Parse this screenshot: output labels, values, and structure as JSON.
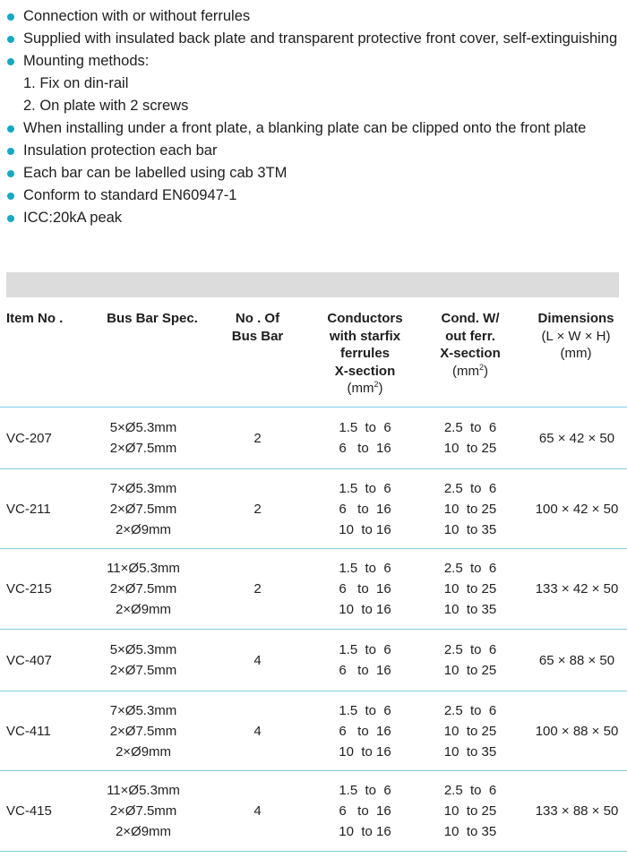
{
  "features": [
    {
      "text": "Connection with or without ferrules",
      "bullet": true
    },
    {
      "text": "Supplied with insulated back plate and transparent protective front cover, self-extinguishing",
      "bullet": true
    },
    {
      "text": "Mounting methods:",
      "bullet": true
    },
    {
      "text": "1. Fix on din-rail",
      "bullet": false
    },
    {
      "text": "2. On plate with 2 screws",
      "bullet": false
    },
    {
      "text": "When installing under a front plate, a blanking plate can be clipped onto the front plate",
      "bullet": true
    },
    {
      "text": "Insulation protection each bar",
      "bullet": true
    },
    {
      "text": "Each bar can be labelled using cab 3TM",
      "bullet": true
    },
    {
      "text": "Conform to standard EN60947-1",
      "bullet": true
    },
    {
      "text": "ICC:20kA peak",
      "bullet": true
    }
  ],
  "colors": {
    "accent": "#1aa7c3",
    "band": "#dcdcdc",
    "divider": "#7fcfe0"
  },
  "table": {
    "headers": {
      "item": "Item No .",
      "spec": "Bus Bar Spec.",
      "nbar_1": "No . Of",
      "nbar_2": "Bus Bar",
      "cond1_1": "Conductors",
      "cond1_2": "with starfix",
      "cond1_3": "ferrules",
      "cond1_4": "X-section",
      "cond1_unit": "(mm",
      "cond1_sup": "2",
      "cond1_close": ")",
      "cond2_1": "Cond. W/",
      "cond2_2": "out ferr.",
      "cond2_3": "X-section",
      "cond2_unit": "(mm",
      "cond2_sup": "2",
      "cond2_close": ")",
      "dim_1": "Dimensions",
      "dim_2": "(L × W × H)",
      "dim_3": "(mm)"
    },
    "rows": [
      {
        "item": "VC-207",
        "spec": "5×Ø5.3mm\n2×Ø7.5mm",
        "nbar": "2",
        "cond1": "1.5  to  6\n6   to  16",
        "cond2": "2.5  to  6\n10  to 25",
        "dim": "65 × 42 × 50"
      },
      {
        "item": "VC-211",
        "spec": "7×Ø5.3mm\n2×Ø7.5mm\n2×Ø9mm",
        "nbar": "2",
        "cond1": "1.5  to  6\n6   to  16\n10  to 16",
        "cond2": "2.5  to  6\n10  to 25\n10  to 35",
        "dim": "100 × 42 × 50"
      },
      {
        "item": "VC-215",
        "spec": "11×Ø5.3mm\n2×Ø7.5mm\n2×Ø9mm",
        "nbar": "2",
        "cond1": "1.5  to  6\n6   to  16\n10  to 16",
        "cond2": "2.5  to  6\n10  to 25\n10  to 35",
        "dim": "133 × 42 × 50"
      },
      {
        "item": "VC-407",
        "spec": "5×Ø5.3mm\n2×Ø7.5mm",
        "nbar": "4",
        "cond1": "1.5  to  6\n6   to  16",
        "cond2": "2.5  to  6\n10  to 25",
        "dim": "65 × 88 × 50"
      },
      {
        "item": "VC-411",
        "spec": "7×Ø5.3mm\n2×Ø7.5mm\n2×Ø9mm",
        "nbar": "4",
        "cond1": "1.5  to  6\n6   to  16\n10  to 16",
        "cond2": "2.5  to  6\n10  to 25\n10  to 35",
        "dim": "100 × 88 × 50"
      },
      {
        "item": "VC-415",
        "spec": "11×Ø5.3mm\n2×Ø7.5mm\n2×Ø9mm",
        "nbar": "4",
        "cond1": "1.5  to  6\n6   to  16\n10  to 16",
        "cond2": "2.5  to  6\n10  to 25\n10  to 35",
        "dim": "133 × 88 × 50"
      }
    ]
  }
}
